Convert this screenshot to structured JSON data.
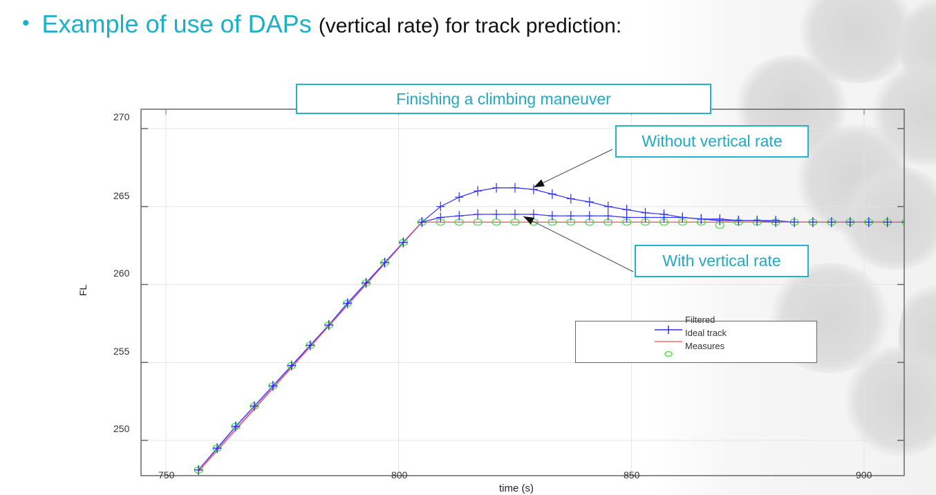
{
  "headline": {
    "bullet": "•",
    "accent_text": "Example of use of DAPs",
    "rest_text": "(vertical rate) for track prediction:"
  },
  "colors": {
    "accent": "#1ab0c8",
    "filtered_line": "#2a2aff",
    "ideal_track": "#ff5a5a",
    "measures": "#3ddc3d"
  },
  "callouts": {
    "title": "Finishing a climbing maneuver",
    "without": "Without vertical rate",
    "with": "With vertical rate"
  },
  "axes": {
    "xlabel": "time (s)",
    "ylabel": "FL",
    "xticks": [
      "750",
      "800",
      "850",
      "900"
    ],
    "yticks": [
      "270",
      "265",
      "260",
      "255",
      "250"
    ]
  },
  "legend": {
    "entries": [
      "Filtered",
      "Ideal track",
      "Measures"
    ]
  },
  "chart_data": {
    "type": "line",
    "title": "Finishing a climbing maneuver",
    "xlabel": "time (s)",
    "ylabel": "FL",
    "xlim": [
      745,
      910
    ],
    "ylim": [
      248,
      271
    ],
    "xticks": [
      750,
      800,
      850,
      900
    ],
    "yticks": [
      250,
      255,
      260,
      265,
      270
    ],
    "grid": true,
    "legend_position": "lower right",
    "annotations": [
      "Without vertical rate",
      "With vertical rate"
    ],
    "series": [
      {
        "name": "Ideal track",
        "style": "red line",
        "x": [
          757,
          805,
          910
        ],
        "y": [
          248,
          264,
          264
        ]
      },
      {
        "name": "Measures",
        "style": "green circles",
        "x": [
          757,
          761,
          765,
          769,
          773,
          777,
          781,
          785,
          789,
          793,
          797,
          801,
          805,
          809,
          813,
          817,
          821,
          825,
          829,
          833,
          837,
          841,
          845,
          849,
          853,
          857,
          861,
          865,
          869,
          873,
          877,
          881,
          885,
          889,
          893,
          897,
          901,
          905,
          909
        ],
        "y": [
          248.1,
          249.5,
          250.9,
          252.2,
          253.5,
          254.8,
          256.1,
          257.4,
          258.8,
          260.1,
          261.4,
          262.7,
          264.0,
          264.0,
          264.0,
          264.0,
          264.0,
          264.0,
          264.0,
          264.0,
          264.0,
          264.0,
          264.0,
          264.0,
          264.0,
          264.0,
          264.0,
          264.0,
          263.8,
          264.0,
          264.0,
          264.0,
          264.0,
          264.0,
          264.0,
          264.0,
          264.0,
          264.0,
          264.0
        ]
      },
      {
        "name": "Filtered (without vertical rate)",
        "style": "blue line with + markers",
        "x": [
          757,
          761,
          765,
          769,
          773,
          777,
          781,
          785,
          789,
          793,
          797,
          801,
          805,
          809,
          813,
          817,
          821,
          825,
          829,
          833,
          837,
          841,
          845,
          849,
          853,
          857,
          861,
          865,
          869,
          873,
          877,
          881,
          885,
          889,
          893,
          897,
          901,
          905,
          909
        ],
        "y": [
          248.1,
          249.5,
          250.9,
          252.2,
          253.5,
          254.8,
          256.1,
          257.4,
          258.8,
          260.1,
          261.4,
          262.7,
          264.0,
          265.0,
          265.6,
          266.0,
          266.2,
          266.2,
          266.1,
          265.8,
          265.5,
          265.3,
          265.0,
          264.8,
          264.6,
          264.5,
          264.3,
          264.2,
          264.1,
          264.1,
          264.1,
          264.0,
          264.0,
          264.0,
          264.0,
          264.0,
          264.0,
          264.0,
          264.0
        ]
      },
      {
        "name": "Filtered (with vertical rate)",
        "style": "blue line with + markers",
        "x": [
          757,
          761,
          765,
          769,
          773,
          777,
          781,
          785,
          789,
          793,
          797,
          801,
          805,
          809,
          813,
          817,
          821,
          825,
          829,
          833,
          837,
          841,
          845,
          849,
          853,
          857,
          861,
          865,
          869,
          873,
          877,
          881,
          885,
          889,
          893,
          897,
          901,
          905,
          909
        ],
        "y": [
          248.1,
          249.5,
          250.9,
          252.2,
          253.5,
          254.8,
          256.1,
          257.4,
          258.8,
          260.1,
          261.4,
          262.7,
          264.0,
          264.3,
          264.4,
          264.5,
          264.5,
          264.5,
          264.5,
          264.4,
          264.4,
          264.4,
          264.4,
          264.3,
          264.3,
          264.3,
          264.3,
          264.2,
          264.2,
          264.1,
          264.1,
          264.1,
          264.0,
          264.0,
          264.0,
          264.0,
          264.0,
          264.0,
          264.0
        ]
      }
    ]
  }
}
